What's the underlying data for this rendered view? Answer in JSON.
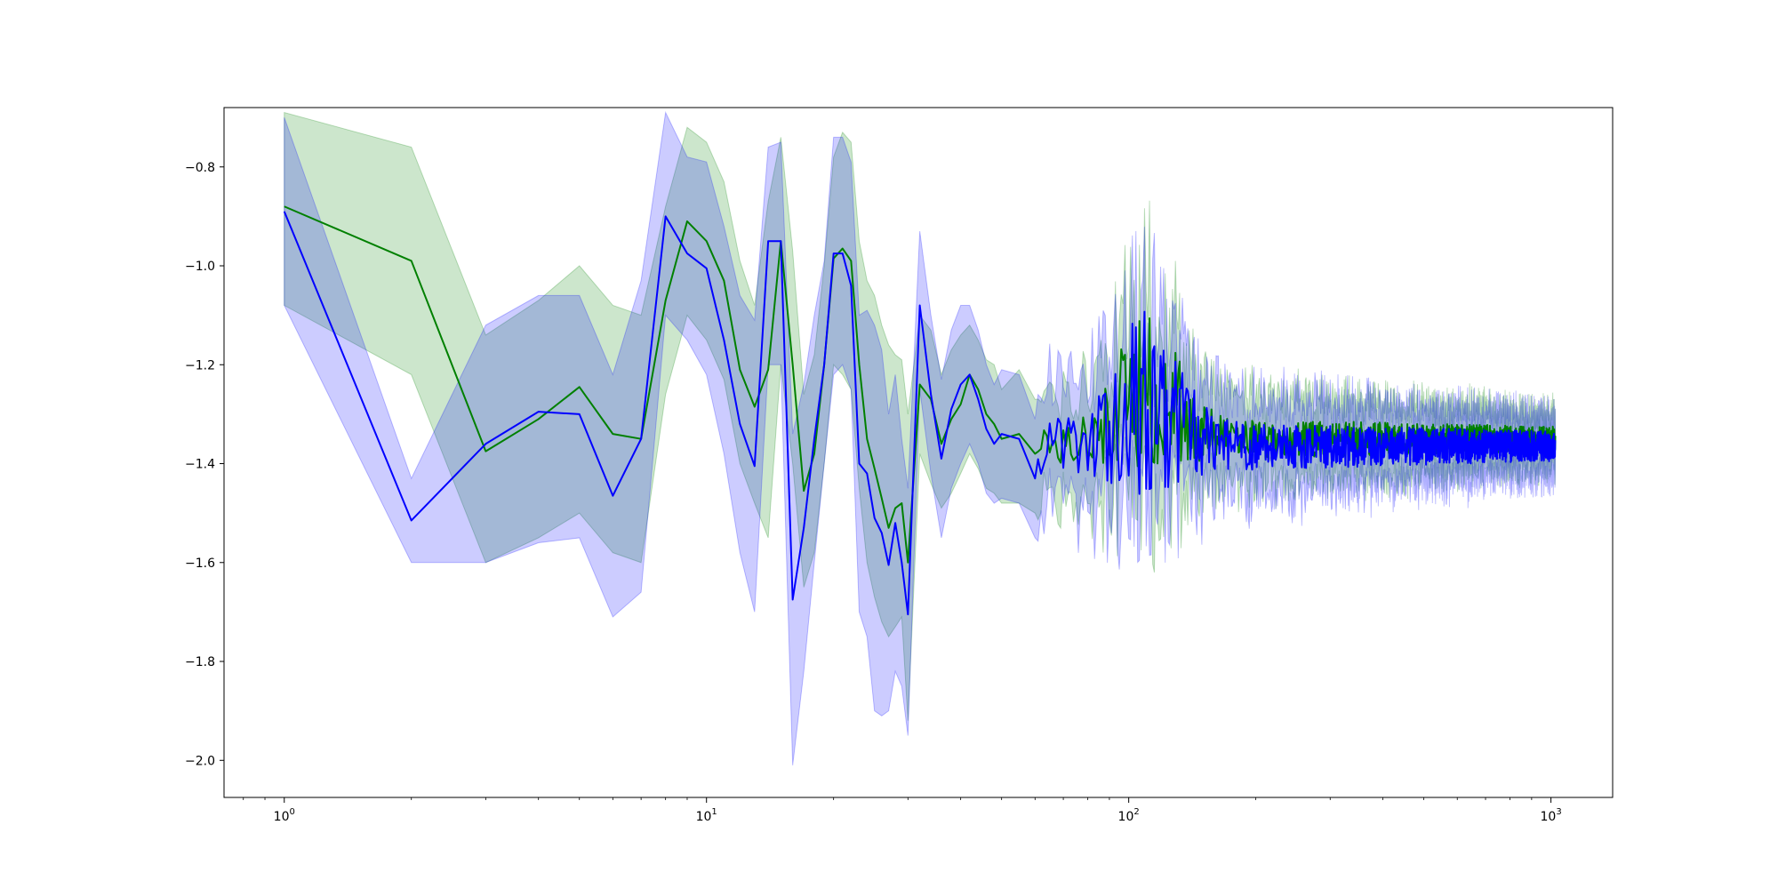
{
  "chart_data": {
    "type": "line",
    "title": "",
    "xlabel": "",
    "ylabel": "",
    "xscale": "log",
    "xlim": [
      0.72,
      1400
    ],
    "ylim": [
      -2.075,
      -0.68
    ],
    "grid": false,
    "legend": "none",
    "y_ticks": [
      -0.8,
      -1.0,
      -1.2,
      -1.4,
      -1.6,
      -1.8,
      -2.0
    ],
    "y_tick_labels": [
      "−0.8",
      "−1.0",
      "−1.2",
      "−1.4",
      "−1.6",
      "−1.8",
      "−2.0"
    ],
    "x_ticks": [
      1,
      10,
      100,
      1000
    ],
    "x_tick_labels": [
      {
        "base": "10",
        "exp": "0"
      },
      {
        "base": "10",
        "exp": "1"
      },
      {
        "base": "10",
        "exp": "2"
      },
      {
        "base": "10",
        "exp": "3"
      }
    ],
    "series": [
      {
        "color": "#008000",
        "band_color": "#008000",
        "band_opacity": 0.2,
        "x": [
          1,
          2,
          3,
          4,
          5,
          6,
          7,
          8,
          9,
          10,
          11,
          12,
          13,
          14,
          15,
          16,
          17,
          18,
          19,
          20,
          21,
          22,
          23,
          24,
          25,
          26,
          27,
          28,
          29,
          30,
          32,
          34,
          36,
          38,
          40,
          42,
          44,
          46,
          48,
          50,
          55,
          60
        ],
        "y": [
          -0.88,
          -0.99,
          -1.375,
          -1.31,
          -1.245,
          -1.34,
          -1.35,
          -1.07,
          -0.91,
          -0.95,
          -1.03,
          -1.21,
          -1.285,
          -1.21,
          -0.95,
          -1.2,
          -1.455,
          -1.38,
          -1.2,
          -0.985,
          -0.965,
          -0.99,
          -1.2,
          -1.35,
          -1.41,
          -1.47,
          -1.53,
          -1.49,
          -1.48,
          -1.6,
          -1.24,
          -1.27,
          -1.36,
          -1.31,
          -1.28,
          -1.22,
          -1.25,
          -1.3,
          -1.32,
          -1.35,
          -1.34,
          -1.38
        ],
        "lower": [
          -1.08,
          -1.22,
          -1.6,
          -1.55,
          -1.5,
          -1.58,
          -1.6,
          -1.26,
          -1.1,
          -1.15,
          -1.23,
          -1.4,
          -1.48,
          -1.55,
          -1.2,
          -1.4,
          -1.65,
          -1.58,
          -1.4,
          -1.2,
          -1.22,
          -1.25,
          -1.45,
          -1.6,
          -1.67,
          -1.72,
          -1.75,
          -1.73,
          -1.71,
          -1.92,
          -1.38,
          -1.44,
          -1.49,
          -1.46,
          -1.42,
          -1.38,
          -1.41,
          -1.45,
          -1.46,
          -1.48,
          -1.48,
          -1.5
        ],
        "upper": [
          -0.69,
          -0.76,
          -1.14,
          -1.07,
          -1.0,
          -1.08,
          -1.1,
          -0.88,
          -0.72,
          -0.75,
          -0.83,
          -0.99,
          -1.08,
          -0.87,
          -0.74,
          -0.97,
          -1.26,
          -1.18,
          -1.0,
          -0.78,
          -0.73,
          -0.75,
          -0.95,
          -1.03,
          -1.06,
          -1.12,
          -1.16,
          -1.18,
          -1.19,
          -1.3,
          -1.1,
          -1.13,
          -1.22,
          -1.17,
          -1.14,
          -1.12,
          -1.15,
          -1.19,
          -1.2,
          -1.25,
          -1.21,
          -1.27
        ],
        "noise": {
          "x_start": 60,
          "x_end": 1024,
          "center": -1.35,
          "amplitude_start": 0.05,
          "amplitude_end": 0.025,
          "bump_x": 110,
          "bump_center": -1.25,
          "bump_amplitude": 0.12,
          "band_halfwidth_start": 0.11,
          "band_halfwidth_end": 0.05
        }
      },
      {
        "color": "#0000ff",
        "band_color": "#0000ff",
        "band_opacity": 0.2,
        "x": [
          1,
          2,
          3,
          4,
          5,
          6,
          7,
          8,
          9,
          10,
          11,
          12,
          13,
          14,
          15,
          16,
          17,
          18,
          19,
          20,
          21,
          22,
          23,
          24,
          25,
          26,
          27,
          28,
          29,
          30,
          32,
          34,
          36,
          38,
          40,
          42,
          44,
          46,
          48,
          50,
          55,
          60
        ],
        "y": [
          -0.89,
          -1.515,
          -1.36,
          -1.295,
          -1.3,
          -1.465,
          -1.35,
          -0.9,
          -0.975,
          -1.005,
          -1.15,
          -1.32,
          -1.405,
          -0.95,
          -0.95,
          -1.675,
          -1.53,
          -1.35,
          -1.2,
          -0.975,
          -0.975,
          -1.04,
          -1.4,
          -1.42,
          -1.51,
          -1.54,
          -1.605,
          -1.52,
          -1.6,
          -1.705,
          -1.08,
          -1.26,
          -1.39,
          -1.29,
          -1.24,
          -1.22,
          -1.27,
          -1.33,
          -1.36,
          -1.34,
          -1.35,
          -1.43
        ],
        "lower": [
          -1.08,
          -1.6,
          -1.6,
          -1.56,
          -1.55,
          -1.71,
          -1.66,
          -1.1,
          -1.15,
          -1.22,
          -1.38,
          -1.58,
          -1.7,
          -1.2,
          -1.2,
          -2.01,
          -1.82,
          -1.6,
          -1.4,
          -1.22,
          -1.2,
          -1.25,
          -1.7,
          -1.75,
          -1.9,
          -1.91,
          -1.9,
          -1.82,
          -1.85,
          -1.95,
          -1.25,
          -1.42,
          -1.55,
          -1.45,
          -1.4,
          -1.36,
          -1.4,
          -1.46,
          -1.48,
          -1.47,
          -1.48,
          -1.55
        ],
        "upper": [
          -0.7,
          -1.43,
          -1.12,
          -1.06,
          -1.06,
          -1.22,
          -1.03,
          -0.69,
          -0.78,
          -0.79,
          -0.92,
          -1.06,
          -1.11,
          -0.76,
          -0.75,
          -1.34,
          -1.24,
          -1.1,
          -0.99,
          -0.74,
          -0.74,
          -0.79,
          -1.1,
          -1.09,
          -1.12,
          -1.17,
          -1.3,
          -1.22,
          -1.35,
          -1.45,
          -0.93,
          -1.1,
          -1.23,
          -1.13,
          -1.08,
          -1.08,
          -1.13,
          -1.2,
          -1.24,
          -1.21,
          -1.22,
          -1.31
        ],
        "noise": {
          "x_start": 60,
          "x_end": 1024,
          "center": -1.365,
          "amplitude_start": 0.06,
          "amplitude_end": 0.03,
          "bump_x": 110,
          "bump_center": -1.27,
          "bump_amplitude": 0.14,
          "band_halfwidth_start": 0.12,
          "band_halfwidth_end": 0.055
        }
      }
    ]
  }
}
